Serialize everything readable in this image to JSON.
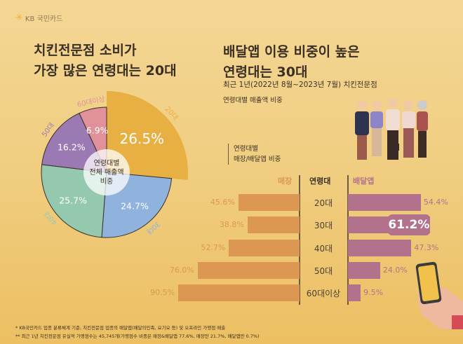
{
  "logo": {
    "text": "KB 국민카드",
    "icon": "kb-star-icon"
  },
  "left_title": [
    "치킨전문점 소비가",
    "가장 많은 연령대는 20대"
  ],
  "right_title": [
    "배달앱 이용 비중이 높은",
    "연령대는 30대"
  ],
  "period": "최근 1년(2022년 8월~2023년 7월) 치킨전문점",
  "subtitle": "연령대별 매출액 비중",
  "bar_legend": [
    "연령대별",
    "매장/배달앱 비중"
  ],
  "footnotes": [
    "* KB국민카드 업종 분류체계 기준, 치킨전문점 업종의 배달앱(배달의민족, 요기요 등) 및 오프라인 가맹점 매출",
    "** 최근 1년 치킨전문점 유실적 가맹점수는 45,745개(가맹점수 비중은 매장&배달앱 77.6%, 매장만 21.7%, 배달앱만 0.7%)"
  ],
  "chart_data": [
    {
      "type": "pie",
      "center_label": [
        "연령대별",
        "전체 매출액",
        "비중"
      ],
      "categories": [
        "20대",
        "30대",
        "40대",
        "50대",
        "60대이상"
      ],
      "values": [
        26.5,
        24.7,
        25.7,
        16.2,
        6.9
      ],
      "colors": [
        "#e8b042",
        "#8fb3dc",
        "#94c9b0",
        "#9b7ab3",
        "#e0919a"
      ],
      "highlight": "20대"
    },
    {
      "type": "bar",
      "orientation": "horizontal-diverging",
      "header": {
        "left": "매장",
        "center": "연령대",
        "right": "배달앱"
      },
      "categories": [
        "20대",
        "30대",
        "40대",
        "50대",
        "60대이상"
      ],
      "series": [
        {
          "name": "매장",
          "values": [
            45.6,
            38.8,
            52.7,
            76.0,
            90.5
          ],
          "color": "#dc9853"
        },
        {
          "name": "배달앱",
          "values": [
            54.4,
            61.2,
            47.3,
            24.0,
            9.5
          ],
          "color": "#b3728c"
        }
      ],
      "highlight": "30대"
    }
  ]
}
